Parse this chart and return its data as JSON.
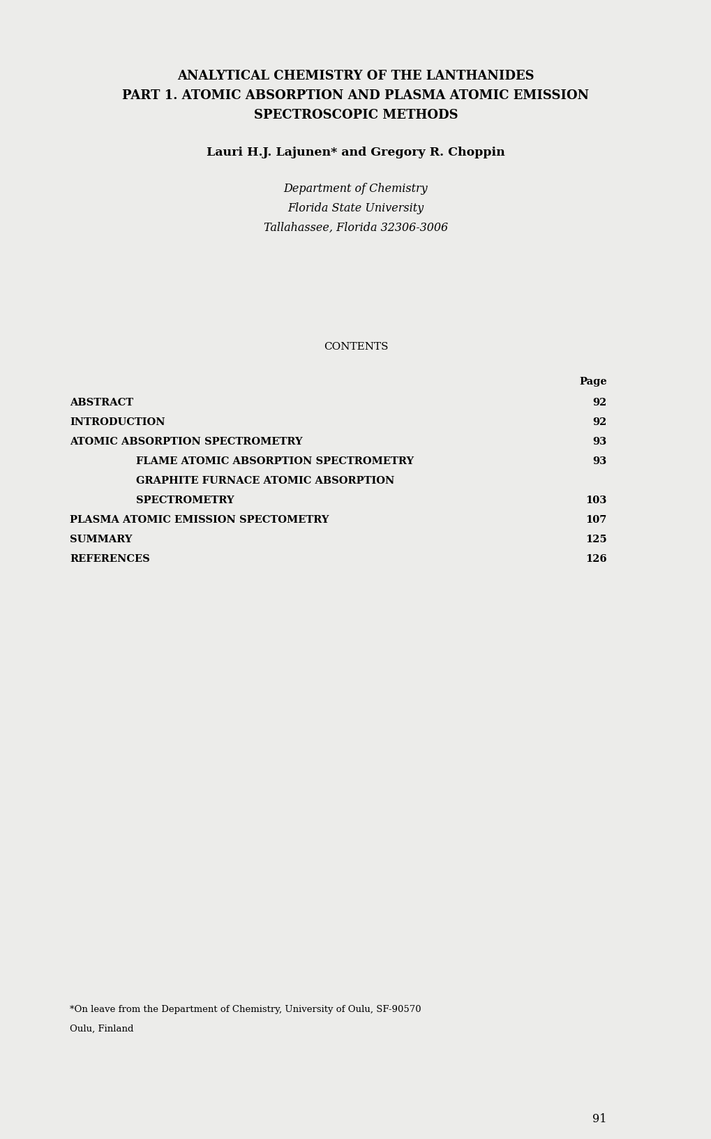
{
  "bg_color": "#ececea",
  "title_line1": "ANALYTICAL CHEMISTRY OF THE LANTHANIDES",
  "title_line2": "PART 1. ATOMIC ABSORPTION AND PLASMA ATOMIC EMISSION",
  "title_line3": "SPECTROSCOPIC METHODS",
  "author": "Lauri H.J. Lajunen* and Gregory R. Choppin",
  "affil1": "Department of Chemistry",
  "affil2": "Florida State University",
  "affil3": "Tallahassee, Florida 32306-3006",
  "contents_label": "CONTENTS",
  "page_label": "Page",
  "toc_entries": [
    {
      "text": "ABSTRACT",
      "indent": 0,
      "page": "92"
    },
    {
      "text": "INTRODUCTION",
      "indent": 0,
      "page": "92"
    },
    {
      "text": "ATOMIC ABSORPTION SPECTROMETRY",
      "indent": 0,
      "page": "93"
    },
    {
      "text": "FLAME ATOMIC ABSORPTION SPECTROMETRY",
      "indent": 1,
      "page": "93"
    },
    {
      "text": "GRAPHITE FURNACE ATOMIC ABSORPTION",
      "indent": 1,
      "page": ""
    },
    {
      "text": "SPECTROMETRY",
      "indent": 1,
      "page": "103"
    },
    {
      "text": "PLASMA ATOMIC EMISSION SPECTOMETRY",
      "indent": 0,
      "page": "107"
    },
    {
      "text": "SUMMARY",
      "indent": 0,
      "page": "125"
    },
    {
      "text": "REFERENCES",
      "indent": 0,
      "page": "126"
    }
  ],
  "footnote_line1": "*On leave from the Department of Chemistry, University of Oulu, SF-90570",
  "footnote_line2": "Oulu, Finland",
  "page_number": "91",
  "text_color": "#000000",
  "title_fontsize": 13.0,
  "author_fontsize": 12.5,
  "affil_fontsize": 11.5,
  "contents_fontsize": 11.0,
  "toc_fontsize": 10.5,
  "footnote_fontsize": 9.5,
  "page_num_fontsize": 11.5
}
